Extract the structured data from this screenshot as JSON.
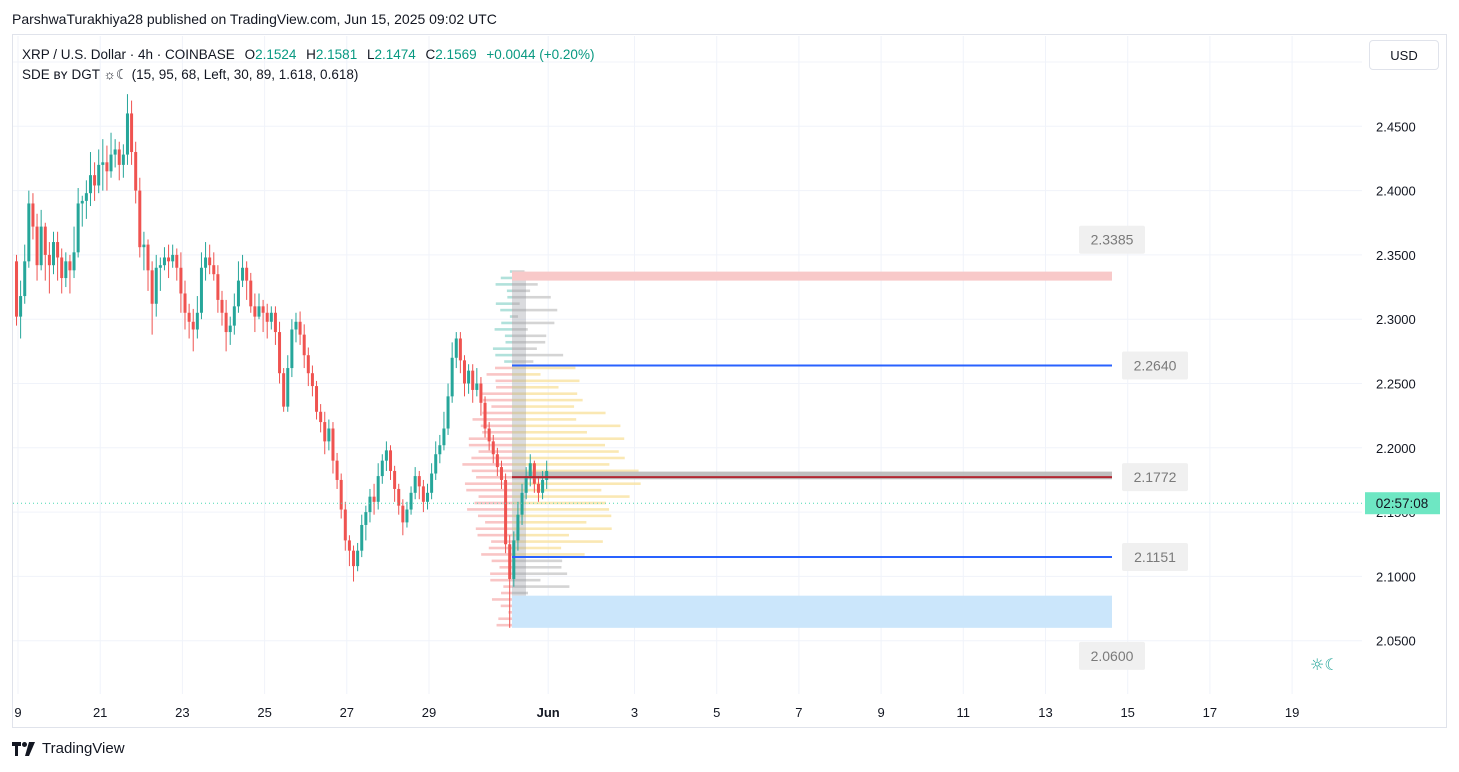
{
  "publisher_line": "ParshwaTurakhiya28 published on TradingView.com, Jun 15, 2025 09:02 UTC",
  "legend": {
    "symbol": "XRP / U.S. Dollar · 4h · COINBASE",
    "o_label": "O",
    "o_value": "2.1524",
    "h_label": "H",
    "h_value": "2.1581",
    "l_label": "L",
    "l_value": "2.1474",
    "c_label": "C",
    "c_value": "2.1569",
    "change": "+0.0044 (+0.20%)",
    "indicator": "SDE ʙʏ DGT ☼☾ (15, 95, 68, Left, 30, 89, 1.618, 0.618)"
  },
  "currency_label": "USD",
  "footer_brand": "TradingView",
  "indicator_glyph": "☼☾",
  "colors": {
    "up": "#26a69a",
    "down": "#ef5350",
    "up_bar": "#089981",
    "down_bar": "#b2161c",
    "level_line": "#2962ff",
    "price_line": "#4dd9b3"
  },
  "chart_data": {
    "type": "candlestick",
    "timeframe": "4h",
    "y_range": [
      2.03,
      2.52
    ],
    "y_ticks": [
      "2.5000",
      "2.4500",
      "2.4000",
      "2.3500",
      "2.3000",
      "2.2500",
      "2.2000",
      "2.1500",
      "2.1000",
      "2.0500"
    ],
    "y_tick_values": [
      2.5,
      2.45,
      2.4,
      2.35,
      2.3,
      2.25,
      2.2,
      2.15,
      2.1,
      2.05
    ],
    "x_ticks": [
      "9",
      "21",
      "23",
      "25",
      "27",
      "29",
      "Jun",
      "3",
      "5",
      "7",
      "9",
      "11",
      "13",
      "15",
      "17",
      "19"
    ],
    "x_tick_bars": [
      0,
      20,
      40,
      60,
      80,
      100,
      129,
      150,
      170,
      190,
      210,
      230,
      250,
      270,
      290,
      310
    ],
    "levels": [
      {
        "label": "2.3385",
        "value": 2.3385,
        "style": "resistance-zone"
      },
      {
        "label": "2.2640",
        "value": 2.264,
        "style": "line"
      },
      {
        "label": "2.1772",
        "value": 2.1772,
        "style": "line-dark"
      },
      {
        "label": "2.1151",
        "value": 2.1151,
        "style": "line"
      },
      {
        "label": "2.0600",
        "value": 2.06,
        "style": "support-zone"
      }
    ],
    "zones": [
      {
        "name": "resistance",
        "from": 2.33,
        "to": 2.337
      },
      {
        "name": "support",
        "from": 2.06,
        "to": 2.085
      },
      {
        "name": "poc",
        "from": 2.1755,
        "to": 2.1815
      }
    ],
    "current_price": 2.1569,
    "countdown": "02:57:08",
    "candles_start_bar": 0,
    "candles": [
      [
        2.345,
        2.302,
        2.295,
        2.35
      ],
      [
        2.302,
        2.318,
        2.285,
        2.33
      ],
      [
        2.318,
        2.345,
        2.312,
        2.358
      ],
      [
        2.345,
        2.39,
        2.34,
        2.4
      ],
      [
        2.39,
        2.372,
        2.362,
        2.398
      ],
      [
        2.372,
        2.342,
        2.33,
        2.382
      ],
      [
        2.342,
        2.372,
        2.338,
        2.385
      ],
      [
        2.372,
        2.35,
        2.33,
        2.375
      ],
      [
        2.35,
        2.342,
        2.32,
        2.36
      ],
      [
        2.342,
        2.36,
        2.335,
        2.368
      ],
      [
        2.36,
        2.348,
        2.33,
        2.368
      ],
      [
        2.348,
        2.332,
        2.32,
        2.355
      ],
      [
        2.332,
        2.345,
        2.325,
        2.352
      ],
      [
        2.345,
        2.338,
        2.32,
        2.35
      ],
      [
        2.338,
        2.352,
        2.332,
        2.372
      ],
      [
        2.352,
        2.39,
        2.348,
        2.402
      ],
      [
        2.39,
        2.392,
        2.372,
        2.396
      ],
      [
        2.392,
        2.398,
        2.378,
        2.408
      ],
      [
        2.398,
        2.412,
        2.388,
        2.43
      ],
      [
        2.412,
        2.404,
        2.392,
        2.422
      ],
      [
        2.404,
        2.42,
        2.398,
        2.432
      ],
      [
        2.42,
        2.422,
        2.4,
        2.44
      ],
      [
        2.422,
        2.415,
        2.4,
        2.435
      ],
      [
        2.415,
        2.428,
        2.41,
        2.445
      ],
      [
        2.428,
        2.432,
        2.418,
        2.44
      ],
      [
        2.432,
        2.42,
        2.408,
        2.438
      ],
      [
        2.42,
        2.428,
        2.41,
        2.436
      ],
      [
        2.428,
        2.46,
        2.42,
        2.475
      ],
      [
        2.46,
        2.43,
        2.42,
        2.47
      ],
      [
        2.43,
        2.4,
        2.39,
        2.438
      ],
      [
        2.4,
        2.356,
        2.348,
        2.41
      ],
      [
        2.356,
        2.358,
        2.338,
        2.368
      ],
      [
        2.358,
        2.338,
        2.322,
        2.362
      ],
      [
        2.338,
        2.312,
        2.288,
        2.345
      ],
      [
        2.312,
        2.34,
        2.302,
        2.35
      ],
      [
        2.34,
        2.342,
        2.322,
        2.348
      ],
      [
        2.342,
        2.348,
        2.338,
        2.356
      ],
      [
        2.348,
        2.345,
        2.332,
        2.358
      ],
      [
        2.345,
        2.35,
        2.34,
        2.358
      ],
      [
        2.35,
        2.34,
        2.33,
        2.355
      ],
      [
        2.34,
        2.32,
        2.305,
        2.352
      ],
      [
        2.32,
        2.305,
        2.292,
        2.33
      ],
      [
        2.305,
        2.298,
        2.285,
        2.312
      ],
      [
        2.298,
        2.292,
        2.275,
        2.308
      ],
      [
        2.292,
        2.305,
        2.285,
        2.318
      ],
      [
        2.305,
        2.34,
        2.3,
        2.352
      ],
      [
        2.34,
        2.348,
        2.33,
        2.36
      ],
      [
        2.348,
        2.342,
        2.335,
        2.358
      ],
      [
        2.342,
        2.335,
        2.33,
        2.352
      ],
      [
        2.335,
        2.315,
        2.305,
        2.342
      ],
      [
        2.315,
        2.305,
        2.295,
        2.322
      ],
      [
        2.305,
        2.29,
        2.275,
        2.315
      ],
      [
        2.29,
        2.295,
        2.28,
        2.302
      ],
      [
        2.295,
        2.31,
        2.288,
        2.32
      ],
      [
        2.31,
        2.33,
        2.305,
        2.345
      ],
      [
        2.33,
        2.34,
        2.325,
        2.35
      ],
      [
        2.34,
        2.33,
        2.315,
        2.345
      ],
      [
        2.33,
        2.31,
        2.305,
        2.336
      ],
      [
        2.31,
        2.302,
        2.29,
        2.32
      ],
      [
        2.302,
        2.31,
        2.3,
        2.32
      ],
      [
        2.31,
        2.305,
        2.29,
        2.315
      ],
      [
        2.305,
        2.298,
        2.285,
        2.312
      ],
      [
        2.298,
        2.305,
        2.292,
        2.31
      ],
      [
        2.305,
        2.29,
        2.28,
        2.31
      ],
      [
        2.29,
        2.258,
        2.25,
        2.298
      ],
      [
        2.258,
        2.232,
        2.228,
        2.262
      ],
      [
        2.232,
        2.262,
        2.228,
        2.272
      ],
      [
        2.262,
        2.292,
        2.255,
        2.3
      ],
      [
        2.292,
        2.298,
        2.282,
        2.305
      ],
      [
        2.298,
        2.288,
        2.28,
        2.306
      ],
      [
        2.288,
        2.272,
        2.262,
        2.296
      ],
      [
        2.272,
        2.258,
        2.248,
        2.278
      ],
      [
        2.258,
        2.248,
        2.24,
        2.264
      ],
      [
        2.248,
        2.228,
        2.222,
        2.252
      ],
      [
        2.228,
        2.22,
        2.212,
        2.234
      ],
      [
        2.22,
        2.205,
        2.195,
        2.228
      ],
      [
        2.205,
        2.215,
        2.198,
        2.222
      ],
      [
        2.215,
        2.19,
        2.18,
        2.22
      ],
      [
        2.19,
        2.175,
        2.168,
        2.196
      ],
      [
        2.175,
        2.152,
        2.145,
        2.18
      ],
      [
        2.152,
        2.128,
        2.12,
        2.158
      ],
      [
        2.128,
        2.12,
        2.108,
        2.132
      ],
      [
        2.12,
        2.108,
        2.096,
        2.124
      ],
      [
        2.108,
        2.12,
        2.104,
        2.126
      ],
      [
        2.12,
        2.14,
        2.115,
        2.148
      ],
      [
        2.14,
        2.15,
        2.128,
        2.155
      ],
      [
        2.15,
        2.162,
        2.142,
        2.168
      ],
      [
        2.162,
        2.158,
        2.148,
        2.172
      ],
      [
        2.158,
        2.178,
        2.152,
        2.188
      ],
      [
        2.178,
        2.19,
        2.172,
        2.195
      ],
      [
        2.19,
        2.198,
        2.182,
        2.205
      ],
      [
        2.198,
        2.182,
        2.175,
        2.202
      ],
      [
        2.182,
        2.168,
        2.158,
        2.186
      ],
      [
        2.168,
        2.155,
        2.148,
        2.172
      ],
      [
        2.155,
        2.142,
        2.132,
        2.16
      ],
      [
        2.142,
        2.152,
        2.138,
        2.158
      ],
      [
        2.152,
        2.165,
        2.148,
        2.17
      ],
      [
        2.165,
        2.178,
        2.16,
        2.185
      ],
      [
        2.178,
        2.17,
        2.16,
        2.182
      ],
      [
        2.17,
        2.158,
        2.15,
        2.175
      ],
      [
        2.158,
        2.165,
        2.152,
        2.172
      ],
      [
        2.165,
        2.18,
        2.16,
        2.188
      ],
      [
        2.18,
        2.195,
        2.175,
        2.205
      ],
      [
        2.195,
        2.202,
        2.188,
        2.21
      ],
      [
        2.202,
        2.215,
        2.198,
        2.228
      ],
      [
        2.215,
        2.24,
        2.21,
        2.25
      ],
      [
        2.24,
        2.27,
        2.235,
        2.282
      ],
      [
        2.27,
        2.285,
        2.262,
        2.29
      ],
      [
        2.285,
        2.268,
        2.258,
        2.29
      ],
      [
        2.268,
        2.25,
        2.24,
        2.272
      ],
      [
        2.25,
        2.26,
        2.242,
        2.265
      ],
      [
        2.26,
        2.245,
        2.235,
        2.265
      ],
      [
        2.245,
        2.25,
        2.24,
        2.262
      ],
      [
        2.25,
        2.235,
        2.225,
        2.255
      ],
      [
        2.235,
        2.215,
        2.208,
        2.24
      ],
      [
        2.215,
        2.205,
        2.198,
        2.22
      ],
      [
        2.205,
        2.195,
        2.188,
        2.21
      ],
      [
        2.195,
        2.185,
        2.178,
        2.2
      ],
      [
        2.185,
        2.175,
        2.168,
        2.19
      ],
      [
        2.175,
        2.125,
        2.118,
        2.18
      ],
      [
        2.125,
        2.098,
        2.06,
        2.132
      ],
      [
        2.098,
        2.128,
        2.092,
        2.135
      ],
      [
        2.128,
        2.148,
        2.12,
        2.158
      ],
      [
        2.148,
        2.165,
        2.14,
        2.172
      ],
      [
        2.165,
        2.178,
        2.16,
        2.185
      ],
      [
        2.178,
        2.188,
        2.17,
        2.195
      ],
      [
        2.188,
        2.172,
        2.165,
        2.19
      ],
      [
        2.172,
        2.165,
        2.158,
        2.178
      ],
      [
        2.165,
        2.175,
        2.16,
        2.182
      ],
      [
        2.175,
        2.182,
        2.168,
        2.19
      ]
    ]
  }
}
